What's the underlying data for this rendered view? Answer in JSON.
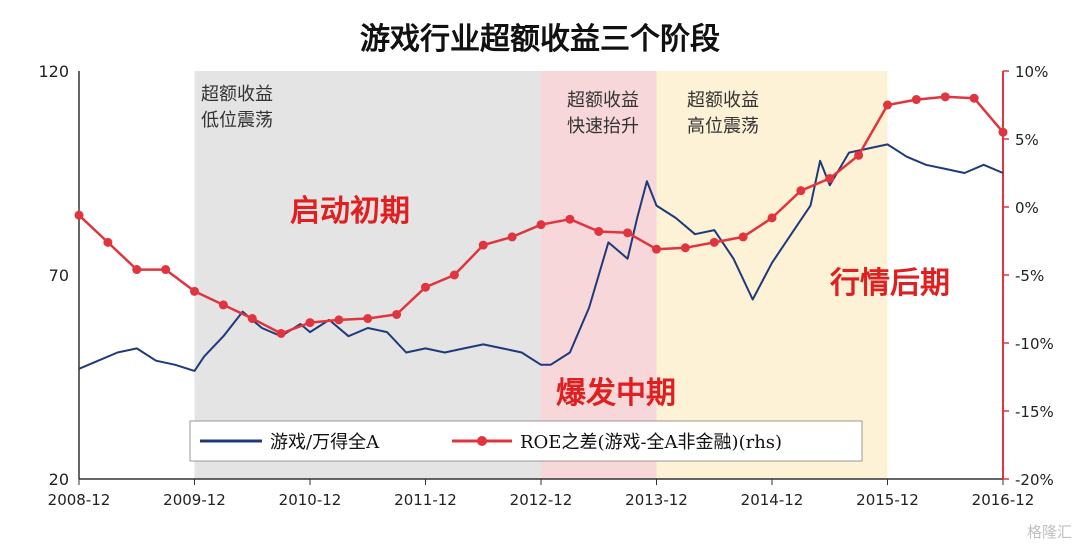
{
  "title": "游戏行业超额收益三个阶段",
  "phases": [
    {
      "label": "超额收益\n低位震荡",
      "start": "2009-12",
      "end": "2012-12",
      "color": "#e4e4e4"
    },
    {
      "label": "超额收益\n快速抬升",
      "start": "2012-12",
      "end": "2013-12",
      "color": "#f8d7da"
    },
    {
      "label": "超额收益\n高位震荡",
      "start": "2013-12",
      "end": "2015-12",
      "color": "#fdf1d6"
    }
  ],
  "stages": [
    "启动初期",
    "爆发中期",
    "行情后期"
  ],
  "watermark": "格隆汇",
  "colors": {
    "game_line": "#1f3a7a",
    "roe_line": "#e0353f",
    "stage_text": "#e02020"
  },
  "chart_data": {
    "type": "line",
    "title": "游戏行业超额收益三个阶段",
    "x_ticks": [
      "2008-12",
      "2009-12",
      "2010-12",
      "2011-12",
      "2012-12",
      "2013-12",
      "2014-12",
      "2015-12",
      "2016-12"
    ],
    "y_left": {
      "ticks": [
        20,
        70,
        120
      ],
      "range": [
        20,
        120
      ]
    },
    "y_right": {
      "ticks": [
        "10%",
        "5%",
        "0%",
        "-5%",
        "-10%",
        "-15%",
        "-20%"
      ],
      "range": [
        -20,
        10
      ],
      "unit": "%"
    },
    "legend": {
      "position": "bottom-center"
    },
    "grid": false,
    "series": [
      {
        "name": "游戏/万得全A",
        "axis": "left",
        "color": "#1f3a7a",
        "points": [
          [
            "2008-12",
            47
          ],
          [
            "2009-02",
            49
          ],
          [
            "2009-04",
            51
          ],
          [
            "2009-06",
            52
          ],
          [
            "2009-08",
            49
          ],
          [
            "2009-10",
            48
          ],
          [
            "2009-12",
            46.5
          ],
          [
            "2010-01",
            50
          ],
          [
            "2010-03",
            55
          ],
          [
            "2010-05",
            61
          ],
          [
            "2010-07",
            57
          ],
          [
            "2010-09",
            55
          ],
          [
            "2010-11",
            58
          ],
          [
            "2010-12",
            56
          ],
          [
            "2011-02",
            59
          ],
          [
            "2011-04",
            55
          ],
          [
            "2011-06",
            57
          ],
          [
            "2011-08",
            56
          ],
          [
            "2011-10",
            51
          ],
          [
            "2011-12",
            52
          ],
          [
            "2012-02",
            51
          ],
          [
            "2012-04",
            52
          ],
          [
            "2012-06",
            53
          ],
          [
            "2012-08",
            52
          ],
          [
            "2012-10",
            51
          ],
          [
            "2012-12",
            48
          ],
          [
            "2013-01",
            48
          ],
          [
            "2013-03",
            51
          ],
          [
            "2013-05",
            62
          ],
          [
            "2013-07",
            78
          ],
          [
            "2013-09",
            74
          ],
          [
            "2013-10",
            84
          ],
          [
            "2013-11",
            93
          ],
          [
            "2013-12",
            87
          ],
          [
            "2014-02",
            84
          ],
          [
            "2014-04",
            80
          ],
          [
            "2014-06",
            81
          ],
          [
            "2014-08",
            74
          ],
          [
            "2014-10",
            64
          ],
          [
            "2014-12",
            73
          ],
          [
            "2015-02",
            80
          ],
          [
            "2015-04",
            87
          ],
          [
            "2015-05",
            98
          ],
          [
            "2015-06",
            92
          ],
          [
            "2015-08",
            100
          ],
          [
            "2015-10",
            101
          ],
          [
            "2015-12",
            102
          ],
          [
            "2016-02",
            99
          ],
          [
            "2016-04",
            97
          ],
          [
            "2016-06",
            96
          ],
          [
            "2016-08",
            95
          ],
          [
            "2016-10",
            97
          ],
          [
            "2016-12",
            95
          ]
        ]
      },
      {
        "name": "ROE之差(游戏-全A非金融)(rhs)",
        "axis": "right",
        "color": "#e0353f",
        "points": [
          [
            "2008-12",
            -0.6
          ],
          [
            "2009-03",
            -2.6
          ],
          [
            "2009-06",
            -4.6
          ],
          [
            "2009-09",
            -4.6
          ],
          [
            "2009-12",
            -6.2
          ],
          [
            "2010-03",
            -7.2
          ],
          [
            "2010-06",
            -8.2
          ],
          [
            "2010-09",
            -9.3
          ],
          [
            "2010-12",
            -8.5
          ],
          [
            "2011-03",
            -8.3
          ],
          [
            "2011-06",
            -8.2
          ],
          [
            "2011-09",
            -7.9
          ],
          [
            "2011-12",
            -5.9
          ],
          [
            "2012-03",
            -5.0
          ],
          [
            "2012-06",
            -2.8
          ],
          [
            "2012-09",
            -2.2
          ],
          [
            "2012-12",
            -1.3
          ],
          [
            "2013-03",
            -0.9
          ],
          [
            "2013-06",
            -1.8
          ],
          [
            "2013-09",
            -1.9
          ],
          [
            "2013-12",
            -3.1
          ],
          [
            "2014-03",
            -3.0
          ],
          [
            "2014-06",
            -2.6
          ],
          [
            "2014-09",
            -2.2
          ],
          [
            "2014-12",
            -0.8
          ],
          [
            "2015-03",
            1.2
          ],
          [
            "2015-06",
            2.1
          ],
          [
            "2015-09",
            3.8
          ],
          [
            "2015-12",
            7.5
          ],
          [
            "2016-03",
            7.9
          ],
          [
            "2016-06",
            8.1
          ],
          [
            "2016-09",
            8.0
          ],
          [
            "2016-12",
            5.5
          ]
        ]
      }
    ]
  }
}
